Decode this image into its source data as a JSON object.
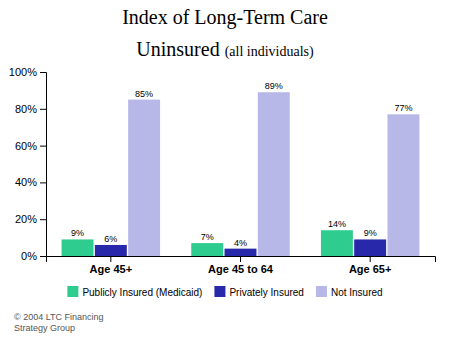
{
  "chart_data": {
    "type": "bar",
    "title": "Index of Long-Term Care",
    "subtitle": "Uninsured",
    "annotations": [
      "(all individuals)",
      "©  2004 LTC Financing\nStrategy Group"
    ],
    "categories": [
      "Age 45+",
      "Age 45 to 64",
      "Age 65+"
    ],
    "series": [
      {
        "name": "Publicly Insured (Medicaid)",
        "color": "#2ecc8e",
        "values": [
          9,
          7,
          14
        ],
        "value_labels": [
          "9%",
          "7%",
          "14%"
        ]
      },
      {
        "name": "Privately Insured",
        "color": "#2828aa",
        "values": [
          6,
          4,
          9
        ],
        "value_labels": [
          "6%",
          "4%",
          "9%"
        ]
      },
      {
        "name": "Not Insured",
        "color": "#b8b8e8",
        "values": [
          85,
          89,
          77
        ],
        "value_labels": [
          "85%",
          "89%",
          "77%"
        ]
      }
    ],
    "ylim": [
      0,
      100
    ],
    "yticks": [
      {
        "value": 0,
        "label": "0%"
      },
      {
        "value": 20,
        "label": "20%"
      },
      {
        "value": 40,
        "label": "40%"
      },
      {
        "value": 60,
        "label": "60%"
      },
      {
        "value": 80,
        "label": "80%"
      },
      {
        "value": 100,
        "label": "100%"
      }
    ],
    "grid": false,
    "legend": "bottom",
    "data_labels": true
  }
}
